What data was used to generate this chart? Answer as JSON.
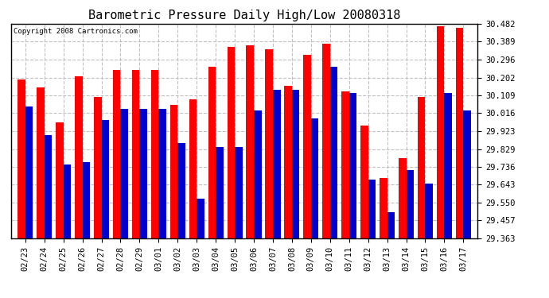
{
  "title": "Barometric Pressure Daily High/Low 20080318",
  "copyright": "Copyright 2008 Cartronics.com",
  "dates": [
    "02/23",
    "02/24",
    "02/25",
    "02/26",
    "02/27",
    "02/28",
    "02/29",
    "03/01",
    "03/02",
    "03/03",
    "03/04",
    "03/05",
    "03/06",
    "03/07",
    "03/08",
    "03/09",
    "03/10",
    "03/11",
    "03/12",
    "03/13",
    "03/14",
    "03/15",
    "03/16",
    "03/17"
  ],
  "highs": [
    30.19,
    30.15,
    29.97,
    30.21,
    30.1,
    30.24,
    30.24,
    30.24,
    30.06,
    30.09,
    30.26,
    30.36,
    30.37,
    30.35,
    30.16,
    30.32,
    30.38,
    30.13,
    29.95,
    29.68,
    29.78,
    30.1,
    30.47,
    30.46
  ],
  "lows": [
    30.05,
    29.9,
    29.75,
    29.76,
    29.98,
    30.04,
    30.04,
    30.04,
    29.86,
    29.57,
    29.84,
    29.84,
    30.03,
    30.14,
    30.14,
    29.99,
    30.26,
    30.12,
    29.67,
    29.5,
    29.72,
    29.65,
    30.12,
    30.03
  ],
  "high_color": "#ff0000",
  "low_color": "#0000cc",
  "bg_color": "#ffffff",
  "plot_bg_color": "#ffffff",
  "grid_color": "#bbbbbb",
  "ymin": 29.363,
  "ymax": 30.482,
  "yticks": [
    29.363,
    29.457,
    29.55,
    29.643,
    29.736,
    29.829,
    29.923,
    30.016,
    30.109,
    30.202,
    30.296,
    30.389,
    30.482
  ],
  "title_fontsize": 11,
  "tick_fontsize": 7.5,
  "bar_width": 0.4
}
